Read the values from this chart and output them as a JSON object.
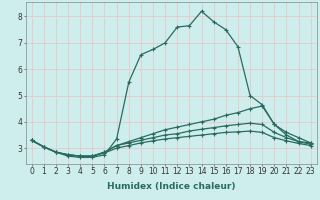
{
  "xlabel": "Humidex (Indice chaleur)",
  "background_color": "#ceeeed",
  "grid_color": "#e8c8c8",
  "line_color": "#2a6b60",
  "series": [
    {
      "x": [
        0,
        1,
        2,
        3,
        4,
        5,
        6,
        7,
        8,
        9,
        10,
        11,
        12,
        13,
        14,
        15,
        16,
        17,
        18,
        19,
        20,
        21,
        22,
        23
      ],
      "y": [
        3.3,
        3.05,
        2.85,
        2.7,
        2.65,
        2.65,
        2.75,
        3.35,
        5.5,
        6.55,
        6.75,
        7.0,
        7.6,
        7.65,
        8.2,
        7.8,
        7.5,
        6.85,
        5.0,
        4.65,
        3.9,
        3.5,
        3.25,
        3.2
      ]
    },
    {
      "x": [
        0,
        1,
        2,
        3,
        4,
        5,
        6,
        7,
        8,
        9,
        10,
        11,
        12,
        13,
        14,
        15,
        16,
        17,
        18,
        19,
        20,
        21,
        22,
        23
      ],
      "y": [
        3.3,
        3.05,
        2.85,
        2.75,
        2.7,
        2.7,
        2.85,
        3.1,
        3.25,
        3.4,
        3.55,
        3.7,
        3.8,
        3.9,
        4.0,
        4.1,
        4.25,
        4.35,
        4.5,
        4.6,
        3.9,
        3.6,
        3.4,
        3.2
      ]
    },
    {
      "x": [
        0,
        1,
        2,
        3,
        4,
        5,
        6,
        7,
        8,
        9,
        10,
        11,
        12,
        13,
        14,
        15,
        16,
        17,
        18,
        19,
        20,
        21,
        22,
        23
      ],
      "y": [
        3.3,
        3.05,
        2.85,
        2.75,
        2.7,
        2.7,
        2.85,
        3.1,
        3.2,
        3.3,
        3.4,
        3.5,
        3.55,
        3.65,
        3.72,
        3.78,
        3.85,
        3.9,
        3.95,
        3.9,
        3.6,
        3.4,
        3.25,
        3.15
      ]
    },
    {
      "x": [
        0,
        1,
        2,
        3,
        4,
        5,
        6,
        7,
        8,
        9,
        10,
        11,
        12,
        13,
        14,
        15,
        16,
        17,
        18,
        19,
        20,
        21,
        22,
        23
      ],
      "y": [
        3.3,
        3.05,
        2.85,
        2.75,
        2.7,
        2.7,
        2.82,
        3.0,
        3.1,
        3.2,
        3.28,
        3.35,
        3.4,
        3.45,
        3.5,
        3.55,
        3.6,
        3.62,
        3.65,
        3.6,
        3.4,
        3.28,
        3.18,
        3.1
      ]
    }
  ],
  "ylim": [
    2.4,
    8.55
  ],
  "xlim": [
    -0.5,
    23.5
  ],
  "yticks": [
    3,
    4,
    5,
    6,
    7,
    8
  ],
  "xticks": [
    0,
    1,
    2,
    3,
    4,
    5,
    6,
    7,
    8,
    9,
    10,
    11,
    12,
    13,
    14,
    15,
    16,
    17,
    18,
    19,
    20,
    21,
    22,
    23
  ],
  "marker": "+",
  "markersize": 3,
  "linewidth": 0.9,
  "xlabel_fontsize": 6.5,
  "tick_fontsize": 5.5
}
